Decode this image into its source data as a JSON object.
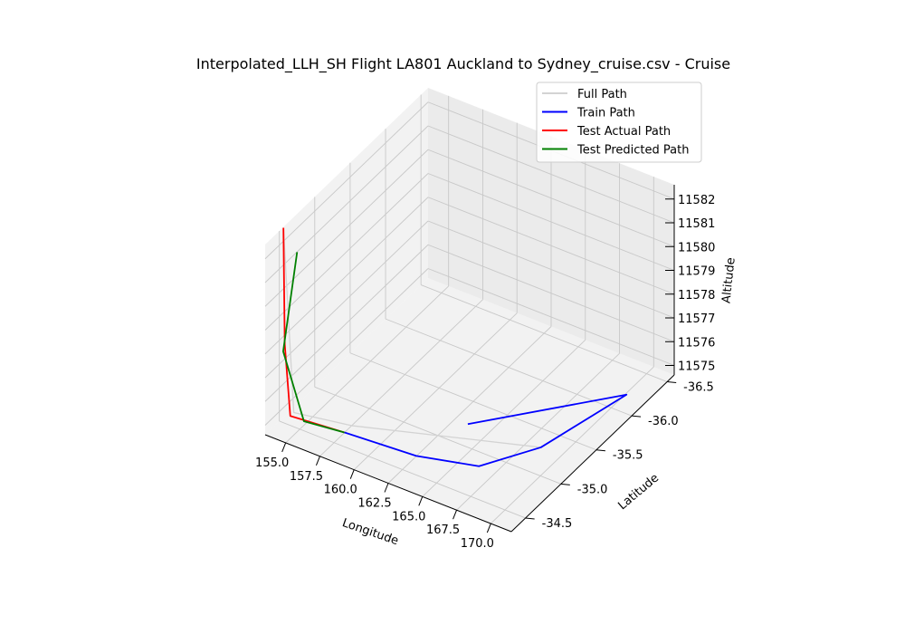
{
  "chart_data": {
    "type": "line",
    "projection": "3d",
    "title": "Interpolated_LLH_SH Flight LA801 Auckland to Sydney_cruise.csv - Cruise",
    "xlabel": "Longitude",
    "ylabel": "Latitude",
    "zlabel": "Altitude",
    "xlim": [
      153.5,
      171.5
    ],
    "ylim": [
      -36.6,
      -34.3
    ],
    "zlim": [
      11574.6,
      11582.6
    ],
    "xticks": [
      "155.0",
      "157.5",
      "160.0",
      "162.5",
      "165.0",
      "167.5",
      "170.0"
    ],
    "yticks": [
      "-36.5",
      "-36.0",
      "-35.5",
      "-35.0",
      "-34.5"
    ],
    "zticks": [
      "11575",
      "11576",
      "11577",
      "11578",
      "11579",
      "11580",
      "11581",
      "11582"
    ],
    "grid": true,
    "legend_position": "upper right",
    "series": [
      {
        "name": "Full Path",
        "color": "#d3d3d3",
        "points": [
          [
            170.6,
            -36.1,
            11575.0
          ],
          [
            169.0,
            -35.2,
            11575.0
          ],
          [
            158.0,
            -34.65,
            11575.0
          ],
          [
            154.3,
            -34.55,
            11575.0
          ],
          [
            153.8,
            -34.5,
            11582.8
          ]
        ]
      },
      {
        "name": "Train Path",
        "color": "#0000ff",
        "points": [
          [
            167.8,
            -34.4,
            11578.0
          ],
          [
            170.6,
            -36.1,
            11575.0
          ],
          [
            169.0,
            -35.2,
            11575.0
          ],
          [
            166.8,
            -34.75,
            11575.0
          ],
          [
            163.0,
            -34.6,
            11575.0
          ],
          [
            158.0,
            -34.55,
            11575.0
          ]
        ]
      },
      {
        "name": "Test Actual Path",
        "color": "#ff0000",
        "points": [
          [
            158.0,
            -34.55,
            11575.0
          ],
          [
            154.3,
            -34.5,
            11575.0
          ],
          [
            154.0,
            -34.48,
            11578.0
          ],
          [
            153.8,
            -34.5,
            11582.8
          ]
        ]
      },
      {
        "name": "Test Predicted Path",
        "color": "#008000",
        "points": [
          [
            158.0,
            -34.55,
            11575.0
          ],
          [
            155.3,
            -34.5,
            11575.0
          ],
          [
            154.3,
            -34.4,
            11578.0
          ],
          [
            154.8,
            -34.5,
            11582.0
          ]
        ]
      }
    ]
  }
}
